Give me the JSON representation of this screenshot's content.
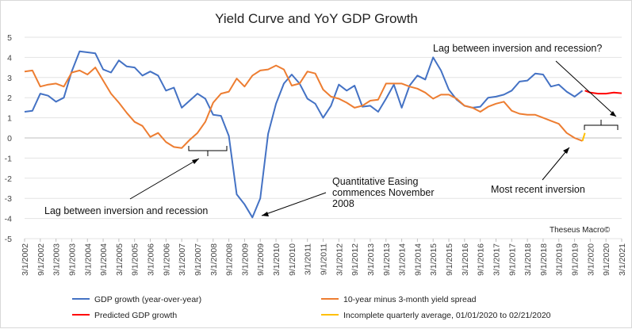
{
  "chart_data": {
    "type": "line",
    "title": "Yield Curve and YoY GDP Growth",
    "ylim": [
      -5,
      5
    ],
    "y_ticks": [
      "5",
      "4",
      "3",
      "2",
      "1",
      "0",
      "-1",
      "-2",
      "-3",
      "-4",
      "-5"
    ],
    "x_tick_labels": [
      "3/1/2002",
      "9/1/2002",
      "3/1/2003",
      "9/1/2003",
      "3/1/2004",
      "9/1/2004",
      "3/1/2005",
      "9/1/2005",
      "3/1/2006",
      "9/1/2006",
      "3/1/2007",
      "9/1/2007",
      "3/1/2008",
      "9/1/2008",
      "3/1/2009",
      "9/1/2009",
      "3/1/2010",
      "9/1/2010",
      "3/1/2011",
      "9/1/2011",
      "3/1/2012",
      "9/1/2012",
      "3/1/2013",
      "9/1/2013",
      "3/1/2014",
      "9/1/2014",
      "3/1/2015",
      "9/1/2015",
      "3/1/2016",
      "9/1/2016",
      "3/1/2017",
      "9/1/2017",
      "3/1/2018",
      "9/1/2018",
      "3/1/2019",
      "9/1/2019",
      "3/1/2020",
      "9/1/2020",
      "3/1/2021"
    ],
    "grid": true,
    "legend_position": "bottom",
    "series": [
      {
        "name": "GDP growth (year-over-year)",
        "color": "#4472C4",
        "x": [
          2002.17,
          2002.42,
          2002.67,
          2002.92,
          2003.17,
          2003.42,
          2003.67,
          2003.92,
          2004.17,
          2004.42,
          2004.67,
          2004.92,
          2005.17,
          2005.42,
          2005.67,
          2005.92,
          2006.17,
          2006.42,
          2006.67,
          2006.92,
          2007.17,
          2007.42,
          2007.67,
          2007.92,
          2008.17,
          2008.42,
          2008.67,
          2008.92,
          2009.17,
          2009.42,
          2009.67,
          2009.92,
          2010.17,
          2010.42,
          2010.67,
          2010.92,
          2011.17,
          2011.42,
          2011.67,
          2011.92,
          2012.17,
          2012.42,
          2012.67,
          2012.92,
          2013.17,
          2013.42,
          2013.67,
          2013.92,
          2014.17,
          2014.42,
          2014.67,
          2014.92,
          2015.17,
          2015.42,
          2015.67,
          2015.92,
          2016.17,
          2016.42,
          2016.67,
          2016.92,
          2017.17,
          2017.42,
          2017.67,
          2017.92,
          2018.17,
          2018.42,
          2018.67,
          2018.92,
          2019.17,
          2019.42,
          2019.67,
          2019.92
        ],
        "y": [
          1.3,
          1.35,
          2.2,
          2.1,
          1.8,
          2.0,
          3.3,
          4.3,
          4.25,
          4.2,
          3.4,
          3.25,
          3.85,
          3.55,
          3.5,
          3.1,
          3.3,
          3.1,
          2.35,
          2.5,
          1.5,
          1.85,
          2.2,
          1.95,
          1.15,
          1.1,
          0.1,
          -2.8,
          -3.3,
          -3.95,
          -3.0,
          0.2,
          1.7,
          2.7,
          3.15,
          2.7,
          1.95,
          1.7,
          1.0,
          1.6,
          2.65,
          2.35,
          2.6,
          1.55,
          1.6,
          1.3,
          1.95,
          2.65,
          1.5,
          2.6,
          3.1,
          2.9,
          4.0,
          3.35,
          2.4,
          1.9,
          1.6,
          1.5,
          1.55,
          2.0,
          2.05,
          2.15,
          2.35,
          2.8,
          2.85,
          3.2,
          3.15,
          2.55,
          2.65,
          2.3,
          2.05,
          2.35
        ]
      },
      {
        "name": "10-year minus 3-month yield spread",
        "color": "#ED7D31",
        "x": [
          2002.17,
          2002.42,
          2002.67,
          2002.92,
          2003.17,
          2003.42,
          2003.67,
          2003.92,
          2004.17,
          2004.42,
          2004.67,
          2004.92,
          2005.17,
          2005.42,
          2005.67,
          2005.92,
          2006.17,
          2006.42,
          2006.67,
          2006.92,
          2007.17,
          2007.42,
          2007.67,
          2007.92,
          2008.17,
          2008.42,
          2008.67,
          2008.92,
          2009.17,
          2009.42,
          2009.67,
          2009.92,
          2010.17,
          2010.42,
          2010.67,
          2010.92,
          2011.17,
          2011.42,
          2011.67,
          2011.92,
          2012.17,
          2012.42,
          2012.67,
          2012.92,
          2013.17,
          2013.42,
          2013.67,
          2013.92,
          2014.17,
          2014.42,
          2014.67,
          2014.92,
          2015.17,
          2015.42,
          2015.67,
          2015.92,
          2016.17,
          2016.42,
          2016.67,
          2016.92,
          2017.17,
          2017.42,
          2017.67,
          2017.92,
          2018.17,
          2018.42,
          2018.67,
          2018.92,
          2019.17,
          2019.42,
          2019.67,
          2019.92
        ],
        "y": [
          3.3,
          3.35,
          2.55,
          2.65,
          2.7,
          2.55,
          3.25,
          3.35,
          3.15,
          3.5,
          2.85,
          2.2,
          1.75,
          1.25,
          0.8,
          0.6,
          0.05,
          0.25,
          -0.2,
          -0.45,
          -0.5,
          -0.1,
          0.25,
          0.8,
          1.75,
          2.2,
          2.3,
          2.95,
          2.55,
          3.1,
          3.35,
          3.4,
          3.6,
          3.4,
          2.6,
          2.7,
          3.3,
          3.2,
          2.4,
          2.05,
          1.95,
          1.75,
          1.5,
          1.6,
          1.85,
          1.9,
          2.7,
          2.7,
          2.7,
          2.55,
          2.45,
          2.25,
          1.95,
          2.15,
          2.15,
          1.95,
          1.6,
          1.5,
          1.3,
          1.55,
          1.7,
          1.8,
          1.35,
          1.2,
          1.15,
          1.15,
          1.0,
          0.85,
          0.7,
          0.25,
          0.0,
          -0.15
        ]
      },
      {
        "name": "Predicted GDP growth",
        "color": "#FF0000",
        "x": [
          2020.0,
          2020.17,
          2020.42,
          2020.67,
          2020.92,
          2021.17
        ],
        "y": [
          2.35,
          2.25,
          2.2,
          2.2,
          2.25,
          2.22
        ]
      },
      {
        "name": "Incomplete quarterly average, 01/01/2020 to 02/21/2020",
        "color": "#FFC000",
        "x": [
          2019.92,
          2020.0
        ],
        "y": [
          -0.15,
          0.25
        ]
      }
    ],
    "annotations": {
      "lag_question": "Lag between inversion and recession?",
      "lag_left": "Lag between inversion and recession",
      "qe_line1": "Quantitative Easing",
      "qe_line2": "commences November",
      "qe_line3": "2008",
      "recent_inversion": "Most recent inversion",
      "source": "Theseus Macro©"
    }
  }
}
